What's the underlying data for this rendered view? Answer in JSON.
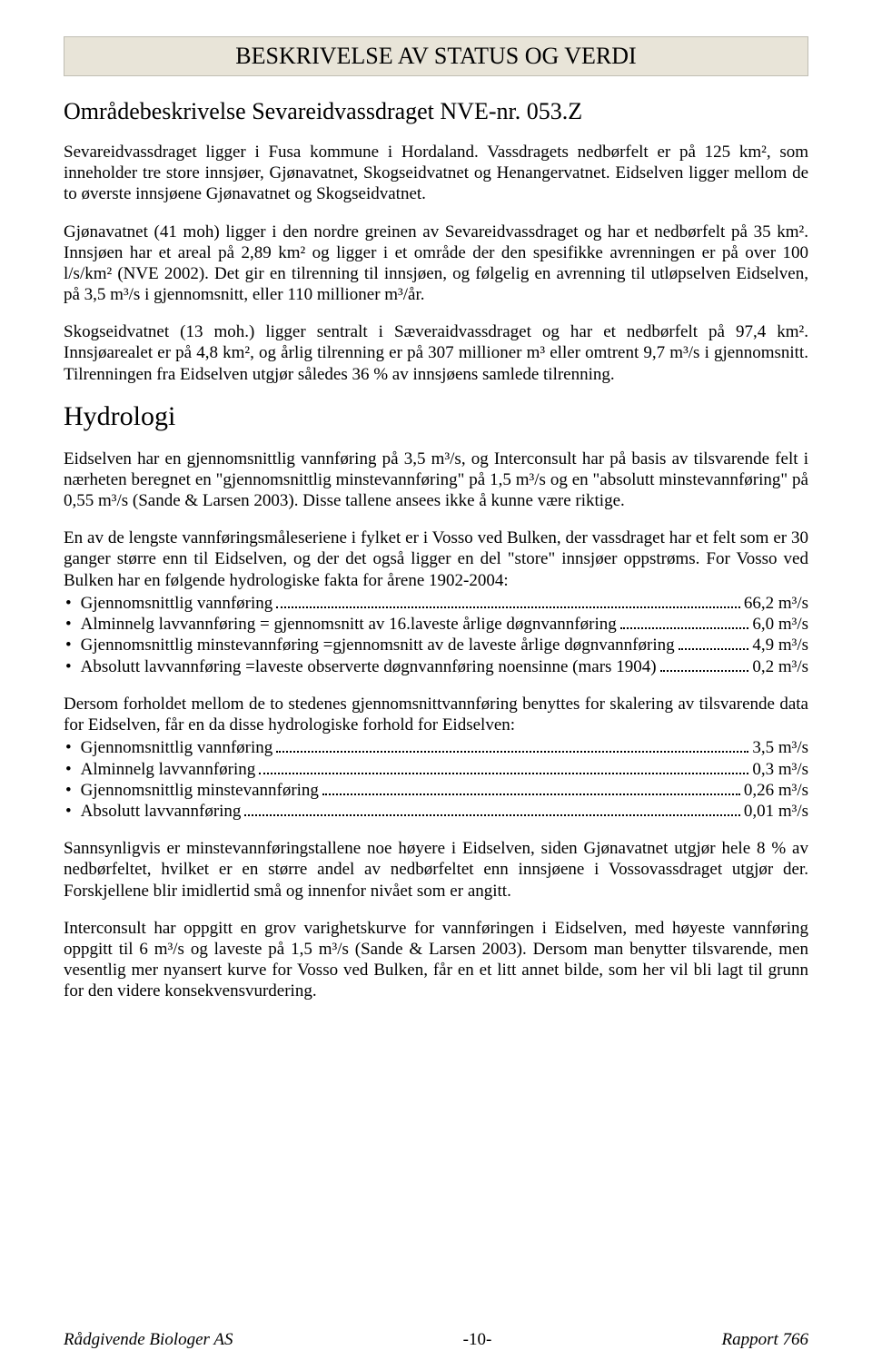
{
  "banner_title": "BESKRIVELSE AV STATUS OG VERDI",
  "subtitle": "Områdebeskrivelse Sevareidvassdraget NVE-nr. 053.Z",
  "para1": "Sevareidvassdraget ligger i Fusa kommune i Hordaland. Vassdragets nedbørfelt er på 125 km², som inneholder tre store innsjøer, Gjønavatnet, Skogseidvatnet og Henangervatnet. Eidselven ligger mellom de to øverste innsjøene Gjønavatnet og Skogseidvatnet.",
  "para2": "Gjønavatnet (41 moh) ligger i den nordre greinen av Sevareidvassdraget og har et nedbørfelt på 35 km². Innsjøen har et areal på 2,89 km² og ligger i et område der den spesifikke avrenningen er på over 100 l/s/km² (NVE 2002). Det gir en tilrenning til innsjøen, og følgelig en avrenning til utløpselven Eidselven, på 3,5 m³/s i gjennomsnitt, eller 110 millioner m³/år.",
  "para3": "Skogseidvatnet (13 moh.) ligger sentralt i Sæveraidvassdraget og har et nedbørfelt på 97,4 km². Innsjøarealet er på 4,8 km², og årlig tilrenning er på 307 millioner m³ eller omtrent 9,7 m³/s i gjennomsnitt. Tilrenningen fra Eidselven utgjør således 36 % av innsjøens samlede tilrenning.",
  "heading_hydrologi": "Hydrologi",
  "para4": "Eidselven har en gjennomsnittlig vannføring på 3,5 m³/s, og Interconsult har på basis av tilsvarende felt i nærheten beregnet en \"gjennomsnittlig minstevannføring\" på 1,5 m³/s og en \"absolutt minstevannføring\" på 0,55 m³/s (Sande & Larsen 2003). Disse tallene ansees ikke å kunne være riktige.",
  "para5": "En av de lengste vannføringsmåleseriene i fylket er i Vosso ved Bulken, der vassdraget har et felt som er 30 ganger større enn til Eidselven, og der det også ligger en del \"store\" innsjøer oppstrøms. For Vosso ved Bulken har en følgende hydrologiske fakta for årene 1902-2004:",
  "list1": [
    {
      "label": "Gjennomsnittlig vannføring",
      "value": "66,2 m³/s"
    },
    {
      "label": "Alminnelg lavvannføring = gjennomsnitt av 16.laveste årlige døgnvannføring",
      "value": "6,0 m³/s"
    },
    {
      "label": "Gjennomsnittlig minstevannføring =gjennomsnitt av de laveste årlige døgnvannføring",
      "value": "4,9 m³/s"
    },
    {
      "label": "Absolutt lavvannføring =laveste observerte døgnvannføring noensinne  (mars 1904)",
      "value": "0,2 m³/s"
    }
  ],
  "para6": "Dersom forholdet mellom de to stedenes gjennomsnittvannføring benyttes for skalering av tilsvarende data for Eidselven, får en da disse hydrologiske forhold for Eidselven:",
  "list2": [
    {
      "label": "Gjennomsnittlig vannføring",
      "value": "3,5 m³/s"
    },
    {
      "label": "Alminnelg lavvannføring",
      "value": "0,3 m³/s"
    },
    {
      "label": "Gjennomsnittlig minstevannføring",
      "value": "0,26 m³/s"
    },
    {
      "label": "Absolutt lavvannføring",
      "value": "0,01 m³/s"
    }
  ],
  "para7": "Sannsynligvis er minstevannføringstallene noe høyere i Eidselven, siden Gjønavatnet utgjør hele 8 % av nedbørfeltet, hvilket er en større andel av nedbørfeltet enn innsjøene i Vossovassdraget utgjør der. Forskjellene blir imidlertid små og innenfor nivået som er angitt.",
  "para8": "Interconsult har oppgitt en grov varighetskurve for vannføringen i Eidselven, med høyeste vannføring oppgitt til 6 m³/s og laveste på 1,5 m³/s (Sande & Larsen 2003). Dersom man benytter tilsvarende, men vesentlig mer nyansert kurve for Vosso ved Bulken, får en et litt annet bilde, som her vil bli lagt til grunn for den videre konsekvensvurdering.",
  "footer": {
    "left": "Rådgivende Biologer AS",
    "center": "-10-",
    "right": "Rapport 766"
  },
  "colors": {
    "banner_bg": "#e8e4d8",
    "banner_border": "#c0beb4",
    "text": "#000000",
    "page_bg": "#ffffff"
  },
  "typography": {
    "body_family": "Times New Roman",
    "body_size_pt": 14,
    "title_size_pt": 20,
    "heading_size_pt": 22
  }
}
